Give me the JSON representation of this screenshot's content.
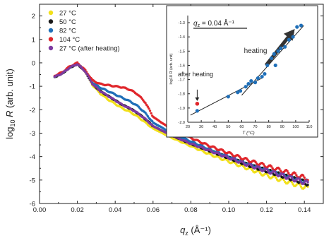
{
  "chart_data": [
    {
      "type": "scatter",
      "xlabel": "q_z (Å⁻¹)",
      "xlabel_main": "q",
      "xlabel_sub": "z",
      "xlabel_unit": " (Å⁻¹)",
      "ylabel": "log10 R (arb. unit)",
      "ylabel_prefix": "log",
      "ylabel_sub": "10",
      "ylabel_R": "R",
      "ylabel_unit": " (arb. unit)",
      "xlim": [
        0.0,
        0.15
      ],
      "ylim": [
        -6,
        2.5
      ],
      "xticks": [
        "0.00",
        "0.02",
        "0.04",
        "0.06",
        "0.08",
        "0.10",
        "0.12",
        "0.14"
      ],
      "xtick_values": [
        0.0,
        0.02,
        0.04,
        0.06,
        0.08,
        0.1,
        0.12,
        0.14
      ],
      "yticks": [
        "2",
        "1",
        "0",
        "-1",
        "-2",
        "-3",
        "-4",
        "-5",
        "-6"
      ],
      "ytick_values": [
        2,
        1,
        0,
        -1,
        -2,
        -3,
        -4,
        -5,
        -6
      ],
      "legend_position": "top-left",
      "series": [
        {
          "name": "27 °C",
          "color": "#f2e01a",
          "x": [
            0.008,
            0.012,
            0.016,
            0.02,
            0.024,
            0.028,
            0.032,
            0.036,
            0.04,
            0.044,
            0.048,
            0.052,
            0.056,
            0.06,
            0.07,
            0.08,
            0.09,
            0.1,
            0.11,
            0.12,
            0.13,
            0.142
          ],
          "y": [
            -0.6,
            -0.45,
            -0.2,
            -0.05,
            -0.35,
            -0.95,
            -1.3,
            -1.55,
            -1.75,
            -1.95,
            -2.1,
            -2.3,
            -2.55,
            -2.8,
            -3.2,
            -3.55,
            -3.9,
            -4.2,
            -4.5,
            -4.8,
            -5.05,
            -5.35
          ]
        },
        {
          "name": "50 °C",
          "color": "#1a1a1a",
          "x": [
            0.008,
            0.012,
            0.016,
            0.02,
            0.024,
            0.028,
            0.032,
            0.036,
            0.04,
            0.044,
            0.048,
            0.052,
            0.056,
            0.06,
            0.07,
            0.08,
            0.09,
            0.1,
            0.11,
            0.12,
            0.13,
            0.142
          ],
          "y": [
            -0.6,
            -0.45,
            -0.2,
            -0.05,
            -0.35,
            -0.9,
            -1.2,
            -1.4,
            -1.6,
            -1.8,
            -1.95,
            -2.15,
            -2.4,
            -2.7,
            -3.1,
            -3.45,
            -3.75,
            -4.05,
            -4.35,
            -4.6,
            -4.85,
            -5.15
          ]
        },
        {
          "name": "82 °C",
          "color": "#1f6fb8",
          "x": [
            0.008,
            0.012,
            0.016,
            0.02,
            0.024,
            0.028,
            0.032,
            0.036,
            0.04,
            0.044,
            0.048,
            0.052,
            0.056,
            0.06,
            0.07,
            0.08,
            0.09,
            0.1,
            0.11,
            0.12,
            0.13,
            0.142
          ],
          "y": [
            -0.6,
            -0.45,
            -0.2,
            -0.05,
            -0.3,
            -0.85,
            -1.05,
            -1.2,
            -1.35,
            -1.5,
            -1.65,
            -1.85,
            -2.15,
            -2.55,
            -3.0,
            -3.35,
            -3.7,
            -4.0,
            -4.3,
            -4.55,
            -4.8,
            -5.1
          ]
        },
        {
          "name": "104 °C",
          "color": "#e0262b",
          "x": [
            0.008,
            0.012,
            0.016,
            0.02,
            0.024,
            0.028,
            0.032,
            0.036,
            0.04,
            0.044,
            0.048,
            0.052,
            0.056,
            0.06,
            0.07,
            0.08,
            0.09,
            0.1,
            0.11,
            0.12,
            0.13,
            0.142
          ],
          "y": [
            -0.55,
            -0.4,
            -0.15,
            0.0,
            -0.3,
            -0.75,
            -0.9,
            -0.95,
            -1.0,
            -1.05,
            -1.15,
            -1.35,
            -1.7,
            -2.3,
            -2.85,
            -3.2,
            -3.55,
            -3.85,
            -4.15,
            -4.4,
            -4.65,
            -4.95
          ]
        },
        {
          "name": "27 °C (after heating)",
          "color": "#7d3aa0",
          "x": [
            0.008,
            0.012,
            0.016,
            0.02,
            0.024,
            0.028,
            0.032,
            0.036,
            0.04,
            0.044,
            0.048,
            0.052,
            0.056,
            0.06,
            0.07,
            0.08,
            0.09,
            0.1,
            0.11,
            0.12,
            0.13,
            0.142
          ],
          "y": [
            -0.6,
            -0.45,
            -0.2,
            -0.05,
            -0.35,
            -0.9,
            -1.2,
            -1.4,
            -1.6,
            -1.8,
            -1.95,
            -2.15,
            -2.4,
            -2.7,
            -3.1,
            -3.45,
            -3.75,
            -4.05,
            -4.35,
            -4.6,
            -4.85,
            -5.15
          ]
        }
      ]
    },
    {
      "type": "scatter",
      "title_main": "q",
      "title_sub": "z",
      "title_rest": " = 0.04 Å⁻¹",
      "xlabel": "T (°C)",
      "ylabel": "log10 R (arb. unit)",
      "xlim": [
        20,
        110
      ],
      "ylim": [
        -2.0,
        -1.25
      ],
      "xticks": [
        "20",
        "30",
        "40",
        "50",
        "60",
        "70",
        "80",
        "90",
        "100",
        "110"
      ],
      "xtick_values": [
        20,
        30,
        40,
        50,
        60,
        70,
        80,
        90,
        100,
        110
      ],
      "yticks": [
        "-1.3",
        "-1.4",
        "-1.5",
        "-1.6",
        "-1.7",
        "-1.8",
        "-1.9",
        "-2.0"
      ],
      "ytick_values": [
        -1.3,
        -1.4,
        -1.5,
        -1.6,
        -1.7,
        -1.8,
        -1.9,
        -2.0
      ],
      "annotations": [
        "heating",
        "after heating"
      ],
      "points": {
        "color": "#1f6fb8",
        "x": [
          27,
          50,
          57,
          59,
          63,
          65,
          67,
          70,
          72,
          75,
          77,
          79,
          82,
          84,
          85,
          87,
          89,
          92,
          95,
          98,
          101,
          104
        ],
        "y": [
          -1.92,
          -1.82,
          -1.79,
          -1.78,
          -1.75,
          -1.73,
          -1.71,
          -1.72,
          -1.69,
          -1.68,
          -1.66,
          -1.6,
          -1.55,
          -1.52,
          -1.6,
          -1.5,
          -1.48,
          -1.47,
          -1.42,
          -1.4,
          -1.33,
          -1.32
        ]
      },
      "after_heating_point": {
        "x": 27,
        "y": -1.87,
        "color": "#e0262b"
      },
      "fit_lines": [
        {
          "x": [
            22,
            75
          ],
          "y": [
            -1.95,
            -1.69
          ]
        },
        {
          "x": [
            60,
            106
          ],
          "y": [
            -1.81,
            -1.32
          ]
        }
      ]
    }
  ]
}
